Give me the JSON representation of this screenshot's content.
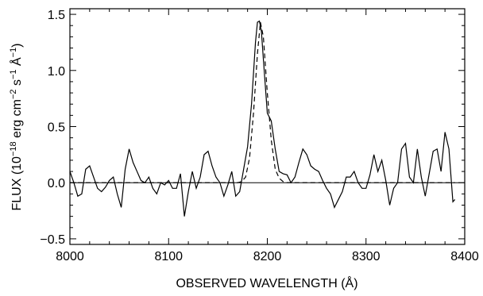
{
  "chart_data": {
    "type": "line",
    "xlabel": "OBSERVED WAVELENGTH (Å)",
    "ylabel": {
      "prefix": "FLUX (10",
      "exp1": "−18",
      "mid1": " erg cm",
      "exp2": "−2",
      "mid2": " s",
      "exp3": "−1",
      "mid3": " Å",
      "exp4": "−1",
      "suffix": ")"
    },
    "xlim": [
      8000,
      8400
    ],
    "ylim": [
      -0.55,
      1.55
    ],
    "x_ticks": [
      8000,
      8100,
      8200,
      8300,
      8400
    ],
    "x_tick_labels": [
      "8000",
      "8100",
      "8200",
      "8300",
      "8400"
    ],
    "y_ticks": [
      -0.5,
      0.0,
      0.5,
      1.0,
      1.5
    ],
    "y_tick_labels": [
      "−0.5",
      "0.0",
      "0.5",
      "1.0",
      "1.5"
    ],
    "zero_line": 0.0,
    "grid": false,
    "series": [
      {
        "style": "solid",
        "x": [
          8000,
          8004,
          8008,
          8012,
          8016,
          8020,
          8024,
          8028,
          8032,
          8036,
          8040,
          8044,
          8048,
          8052,
          8056,
          8060,
          8064,
          8068,
          8072,
          8076,
          8080,
          8084,
          8088,
          8092,
          8096,
          8100,
          8104,
          8108,
          8112,
          8116,
          8120,
          8124,
          8128,
          8132,
          8136,
          8140,
          8144,
          8148,
          8152,
          8156,
          8160,
          8164,
          8168,
          8172,
          8176,
          8180,
          8184,
          8188,
          8190,
          8192,
          8194,
          8196,
          8200,
          8204,
          8208,
          8212,
          8216,
          8220,
          8224,
          8228,
          8232,
          8236,
          8240,
          8244,
          8248,
          8252,
          8256,
          8260,
          8264,
          8268,
          8272,
          8276,
          8280,
          8284,
          8288,
          8292,
          8296,
          8300,
          8304,
          8308,
          8312,
          8316,
          8320,
          8324,
          8328,
          8332,
          8336,
          8340,
          8344,
          8348,
          8352,
          8356,
          8360,
          8364,
          8368,
          8372,
          8376,
          8380,
          8384,
          8388,
          8390
        ],
        "y": [
          0.1,
          0.0,
          -0.12,
          -0.1,
          0.12,
          0.15,
          0.05,
          -0.05,
          -0.08,
          -0.04,
          0.02,
          0.05,
          -0.1,
          -0.22,
          0.12,
          0.3,
          0.18,
          0.1,
          0.02,
          0.0,
          0.05,
          -0.05,
          -0.1,
          0.0,
          -0.02,
          0.02,
          -0.05,
          -0.05,
          0.08,
          -0.3,
          -0.08,
          0.1,
          -0.05,
          0.05,
          0.25,
          0.28,
          0.15,
          0.05,
          0.0,
          -0.12,
          -0.02,
          0.1,
          -0.12,
          -0.08,
          0.12,
          0.32,
          0.7,
          1.25,
          1.43,
          1.44,
          1.35,
          1.1,
          0.62,
          0.55,
          0.3,
          0.1,
          0.08,
          0.07,
          0.0,
          0.05,
          0.18,
          0.3,
          0.25,
          0.15,
          0.12,
          0.1,
          0.02,
          -0.05,
          -0.1,
          -0.22,
          -0.15,
          -0.08,
          0.05,
          0.05,
          0.1,
          0.0,
          -0.05,
          -0.05,
          0.07,
          0.25,
          0.1,
          0.2,
          0.02,
          -0.2,
          -0.05,
          0.0,
          0.3,
          0.35,
          0.05,
          0.0,
          0.3,
          0.05,
          -0.12,
          0.08,
          0.28,
          0.3,
          0.1,
          0.45,
          0.3,
          -0.17,
          -0.15
        ]
      },
      {
        "style": "dashed",
        "x": [
          8000,
          8170,
          8174,
          8178,
          8182,
          8186,
          8190,
          8193,
          8196,
          8200,
          8204,
          8208,
          8212,
          8216,
          8220,
          8390
        ],
        "y": [
          0.0,
          0.0,
          0.01,
          0.05,
          0.22,
          0.62,
          1.15,
          1.43,
          1.3,
          0.8,
          0.38,
          0.12,
          0.04,
          0.01,
          0.0,
          0.0
        ]
      }
    ]
  }
}
